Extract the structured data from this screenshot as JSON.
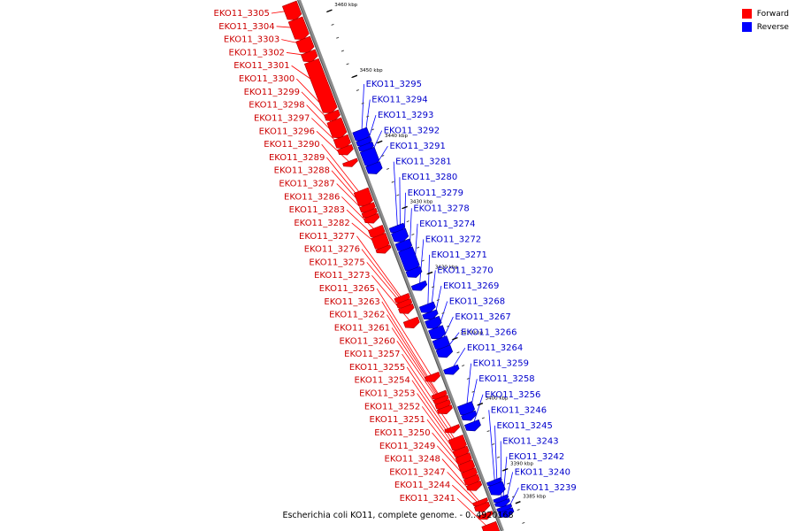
{
  "legend": {
    "forward_label": "Forward",
    "reverse_label": "Reverse"
  },
  "colors": {
    "forward": "#ff0000",
    "forward_dark": "#a80000",
    "reverse": "#0000ff",
    "reverse_dark": "#00008a",
    "backbone": "#8c8c8c",
    "tick": "#000000"
  },
  "caption": "Escherichia coli KO11, complete genome. - 0..4920168",
  "scale": {
    "kbp_top": 3463,
    "kbp_bottom": 3382
  },
  "ticks": [
    {
      "kbp": 3460,
      "label": "3460 kbp"
    },
    {
      "kbp": 3450,
      "label": "3450 kbp"
    },
    {
      "kbp": 3440,
      "label": "3440 kbp"
    },
    {
      "kbp": 3430,
      "label": "3430 kbp"
    },
    {
      "kbp": 3420,
      "label": "3420 kbp"
    },
    {
      "kbp": 3410,
      "label": "3410 kbp"
    },
    {
      "kbp": 3400,
      "label": "3400 kbp"
    },
    {
      "kbp": 3390,
      "label": "3390 kbp"
    },
    {
      "kbp": 3385,
      "label": "3385 kbp"
    }
  ],
  "forward_genes": [
    {
      "id": "EKO11_3305",
      "start": 3463.0,
      "end": 3461.0
    },
    {
      "id": "EKO11_3304",
      "start": 3460.6,
      "end": 3458.0
    },
    {
      "id": "EKO11_3303",
      "start": 3457.6,
      "end": 3456.0
    },
    {
      "id": "EKO11_3302",
      "start": 3455.6,
      "end": 3454.6
    },
    {
      "id": "EKO11_3301",
      "start": 3454.2,
      "end": 3446.8
    },
    {
      "id": "EKO11_3300",
      "start": 3446.4,
      "end": 3445.6
    },
    {
      "id": "EKO11_3299",
      "start": 3445.2,
      "end": 3443.0
    },
    {
      "id": "EKO11_3298",
      "start": 3442.6,
      "end": 3441.4
    },
    {
      "id": "EKO11_3297",
      "start": 3441.1,
      "end": 3440.4
    },
    {
      "id": "EKO11_3296",
      "start": 3439.0,
      "end": 3438.6
    },
    {
      "id": "EKO11_3290",
      "start": 3434.5,
      "end": 3432.6
    },
    {
      "id": "EKO11_3289",
      "start": 3432.3,
      "end": 3431.6
    },
    {
      "id": "EKO11_3288",
      "start": 3431.4,
      "end": 3430.8
    },
    {
      "id": "EKO11_3287",
      "start": 3430.6,
      "end": 3430.0
    },
    {
      "id": "EKO11_3286",
      "start": 3428.8,
      "end": 3427.8
    },
    {
      "id": "EKO11_3283",
      "start": 3427.6,
      "end": 3426.0
    },
    {
      "id": "EKO11_3282",
      "start": 3425.8,
      "end": 3425.4
    },
    {
      "id": "EKO11_3277",
      "start": 3418.4,
      "end": 3417.8
    },
    {
      "id": "EKO11_3276",
      "start": 3417.6,
      "end": 3417.0
    },
    {
      "id": "EKO11_3275",
      "start": 3416.8,
      "end": 3416.2
    },
    {
      "id": "EKO11_3273",
      "start": 3414.8,
      "end": 3414.0
    },
    {
      "id": "EKO11_3265",
      "start": 3406.4,
      "end": 3405.8
    },
    {
      "id": "EKO11_3263",
      "start": 3403.6,
      "end": 3403.1
    },
    {
      "id": "EKO11_3262",
      "start": 3402.9,
      "end": 3402.4
    },
    {
      "id": "EKO11_3261",
      "start": 3402.2,
      "end": 3401.6
    },
    {
      "id": "EKO11_3260",
      "start": 3401.4,
      "end": 3400.9
    },
    {
      "id": "EKO11_3257",
      "start": 3398.4,
      "end": 3398.0
    },
    {
      "id": "EKO11_3255",
      "start": 3396.8,
      "end": 3395.3
    },
    {
      "id": "EKO11_3254",
      "start": 3395.1,
      "end": 3394.3
    },
    {
      "id": "EKO11_3253",
      "start": 3394.1,
      "end": 3393.2
    },
    {
      "id": "EKO11_3252",
      "start": 3393.0,
      "end": 3392.0
    },
    {
      "id": "EKO11_3251",
      "start": 3391.8,
      "end": 3391.0
    },
    {
      "id": "EKO11_3250",
      "start": 3390.8,
      "end": 3390.0
    },
    {
      "id": "EKO11_3249",
      "start": 3389.8,
      "end": 3389.2
    },
    {
      "id": "EKO11_3248",
      "start": 3387.2,
      "end": 3386.8
    },
    {
      "id": "EKO11_3247",
      "start": 3386.6,
      "end": 3386.0
    },
    {
      "id": "EKO11_3244",
      "start": 3385.2,
      "end": 3384.8
    },
    {
      "id": "EKO11_3241",
      "start": 3383.6,
      "end": 3382.0
    }
  ],
  "reverse_genes": [
    {
      "id": "EKO11_3295",
      "start": 3442.6,
      "end": 3441.4
    },
    {
      "id": "EKO11_3294",
      "start": 3441.2,
      "end": 3440.6
    },
    {
      "id": "EKO11_3293",
      "start": 3440.4,
      "end": 3439.8
    },
    {
      "id": "EKO11_3292",
      "start": 3439.6,
      "end": 3437.6
    },
    {
      "id": "EKO11_3291",
      "start": 3437.4,
      "end": 3436.4
    },
    {
      "id": "EKO11_3281",
      "start": 3428.0,
      "end": 3427.4
    },
    {
      "id": "EKO11_3280",
      "start": 3427.2,
      "end": 3426.0
    },
    {
      "id": "EKO11_3279",
      "start": 3425.6,
      "end": 3424.6
    },
    {
      "id": "EKO11_3278",
      "start": 3424.4,
      "end": 3421.6
    },
    {
      "id": "EKO11_3274",
      "start": 3421.4,
      "end": 3420.6
    },
    {
      "id": "EKO11_3272",
      "start": 3419.2,
      "end": 3418.6
    },
    {
      "id": "EKO11_3271",
      "start": 3416.0,
      "end": 3415.2
    },
    {
      "id": "EKO11_3270",
      "start": 3414.8,
      "end": 3414.2
    },
    {
      "id": "EKO11_3269",
      "start": 3413.8,
      "end": 3412.8
    },
    {
      "id": "EKO11_3268",
      "start": 3412.4,
      "end": 3411.2
    },
    {
      "id": "EKO11_3267",
      "start": 3410.8,
      "end": 3409.6
    },
    {
      "id": "EKO11_3266",
      "start": 3409.4,
      "end": 3408.4
    },
    {
      "id": "EKO11_3264",
      "start": 3406.4,
      "end": 3405.8
    },
    {
      "id": "EKO11_3259",
      "start": 3400.8,
      "end": 3399.6
    },
    {
      "id": "EKO11_3258",
      "start": 3399.4,
      "end": 3398.8
    },
    {
      "id": "EKO11_3256",
      "start": 3398.0,
      "end": 3397.2
    },
    {
      "id": "EKO11_3246",
      "start": 3389.2,
      "end": 3388.8
    },
    {
      "id": "EKO11_3245",
      "start": 3388.6,
      "end": 3387.4
    },
    {
      "id": "EKO11_3243",
      "start": 3386.6,
      "end": 3386.2
    },
    {
      "id": "EKO11_3242",
      "start": 3386.0,
      "end": 3385.6
    },
    {
      "id": "EKO11_3240",
      "start": 3385.2,
      "end": 3384.8
    },
    {
      "id": "EKO11_3239",
      "start": 3384.6,
      "end": 3384.0
    }
  ]
}
